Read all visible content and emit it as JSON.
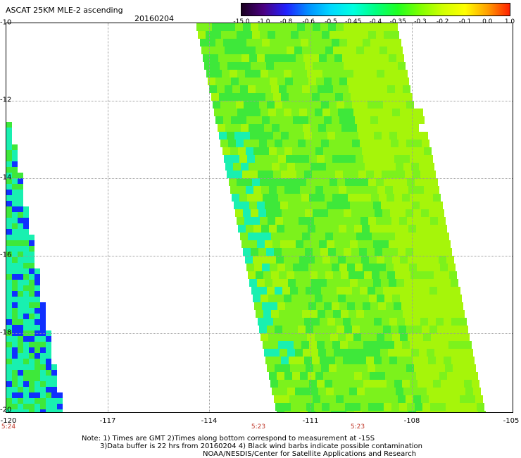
{
  "header": {
    "title": "ASCAT 25KM MLE-2 ascending",
    "date": "20160204"
  },
  "colorbar": {
    "labels": [
      "-15.0",
      "-1.0",
      "-0.8",
      "-0.6",
      "-0.5",
      "-0.45",
      "-0.4",
      "-0.35",
      "-0.3",
      "-0.2",
      "-0.1",
      "0.0",
      "1.0"
    ],
    "colors": [
      "#1a0020",
      "#4b0082",
      "#2020ff",
      "#0090ff",
      "#00d8ff",
      "#00ffe0",
      "#00ff80",
      "#20ff20",
      "#80ff00",
      "#d0ff00",
      "#ffff00",
      "#ffa000",
      "#ff2000"
    ]
  },
  "map": {
    "lon_labels": [
      "-120",
      "-117",
      "-114",
      "-111",
      "-108",
      "-105"
    ],
    "lat_labels": [
      "-10",
      "-12",
      "-14",
      "-16",
      "-18",
      "-20"
    ],
    "time_labels": [
      "5:24",
      "5:23",
      "5:23"
    ],
    "swath_colors": {
      "main": "#7cf21c",
      "dark": "#3ee83a",
      "light": "#a6f50a",
      "cyan": "#19f0b0",
      "blue": "#1030ff"
    }
  },
  "footer": {
    "line1": "Note: 1) Times are GMT 2)Times along bottom correspond to measurement at -15S",
    "line2": "3)Data buffer is 22 hrs from 20160204 4) Black wind barbs indicate possible contamination",
    "line3": "NOAA/NESDIS/Center for Satellite Applications and Research"
  }
}
